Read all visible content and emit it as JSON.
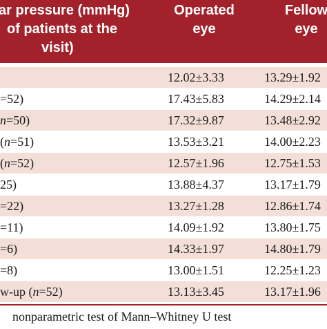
{
  "header": {
    "col1_lines": [
      "ar pressure (mmHg)",
      "of patients at the",
      "visit)"
    ],
    "col2_lines": [
      "Operated",
      "eye"
    ],
    "col3_lines": [
      "Fellow",
      "eye"
    ]
  },
  "rows": [
    {
      "label_pre": "",
      "label_italic": "",
      "label_post": "",
      "operated": "12.02±3.33",
      "fellow": "13.29±1.92"
    },
    {
      "label_pre": "",
      "label_italic": "",
      "label_post": "=52)",
      "operated": "17.43±5.83",
      "fellow": "14.29±2.14"
    },
    {
      "label_pre": "",
      "label_italic": "n",
      "label_post": "=50)",
      "operated": "17.32±9.87",
      "fellow": "13.48±2.92"
    },
    {
      "label_pre": "(",
      "label_italic": "n",
      "label_post": "=51)",
      "operated": "13.53±3.21",
      "fellow": "14.00±2.23"
    },
    {
      "label_pre": "(",
      "label_italic": "n",
      "label_post": "=52)",
      "operated": "12.57±1.96",
      "fellow": "12.75±1.53"
    },
    {
      "label_pre": "",
      "label_italic": "",
      "label_post": "25)",
      "operated": "13.88±4.37",
      "fellow": "13.17±1.79"
    },
    {
      "label_pre": "",
      "label_italic": "",
      "label_post": "=22)",
      "operated": "13.27±1.28",
      "fellow": "12.86±1.74"
    },
    {
      "label_pre": "",
      "label_italic": "",
      "label_post": "=11)",
      "operated": "14.09±1.92",
      "fellow": "13.80±1.75"
    },
    {
      "label_pre": "",
      "label_italic": "",
      "label_post": "=6)",
      "operated": "14.33±1.97",
      "fellow": "14.80±1.79"
    },
    {
      "label_pre": "",
      "label_italic": "",
      "label_post": "=8)",
      "operated": "13.00±1.51",
      "fellow": "12.25±1.23"
    },
    {
      "label_pre": "w-up (",
      "label_italic": "n",
      "label_post": "=52)",
      "operated": "13.13±3.45",
      "fellow": "13.17±1.96"
    }
  ],
  "footnote": "nonparametric test of Mann–Whitney U test",
  "colors": {
    "header_bg": "#a3212b",
    "header_text": "#ffffff",
    "row_alt_bg": "#f3dfd8",
    "row_plain_bg": "#ffffff",
    "body_text": "#1a1a1a"
  }
}
